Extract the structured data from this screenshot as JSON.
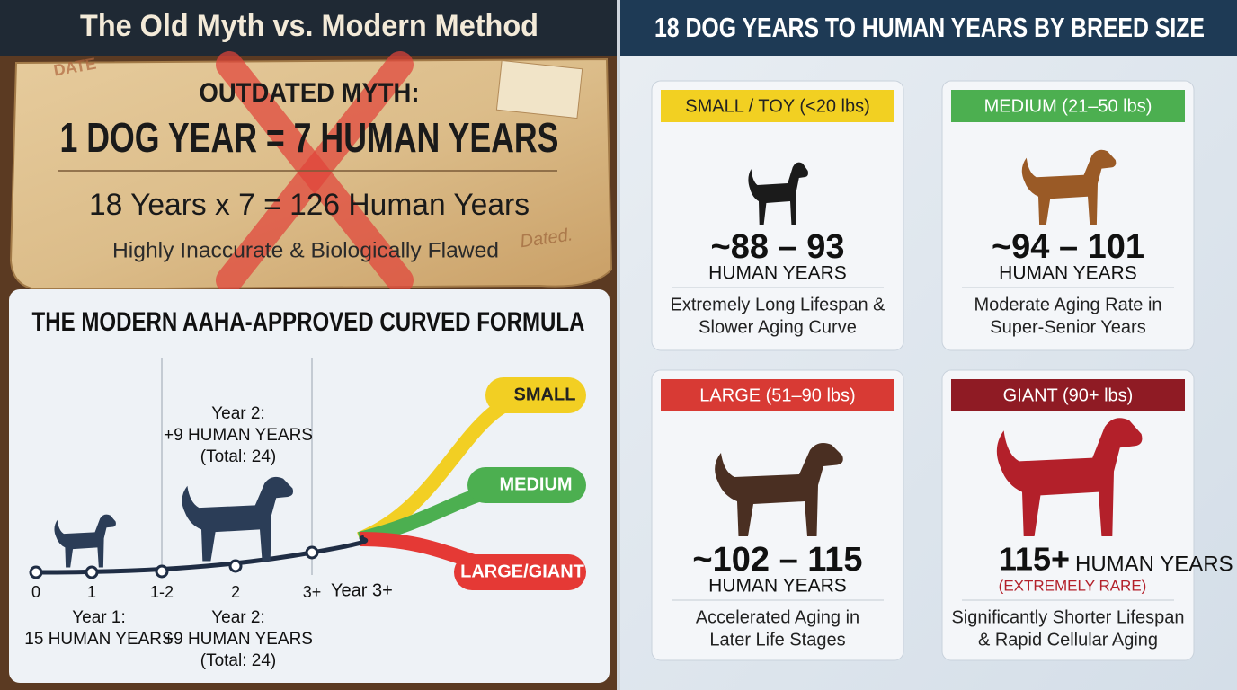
{
  "left_panel": {
    "title": "The Old Myth vs. Modern Method",
    "myth_card": {
      "stamp_top": "DATE",
      "heading": "OUTDATED MYTH:",
      "claim": "1 DOG YEAR = 7 HUMAN YEARS",
      "calculation": "18 Years  x 7 = 126 Human Years",
      "verdict": "Highly Inaccurate & Biologically Flawed",
      "stamp": "Dated."
    },
    "formula": {
      "title": "THE MODERN AAHA-APPROVED CURVED FORMULA",
      "timeline_ticks": [
        "0",
        "1",
        "1-2",
        "2",
        "3+"
      ],
      "timeline_end": "Year 3+",
      "upper_note": [
        "Year 2:",
        "+9 HUMAN YEARS",
        "(Total: 24)"
      ],
      "year1_note": [
        "Year 1:",
        "15 HUMAN YEARS"
      ],
      "year2_note": [
        "Year 2:",
        "+9 HUMAN YEARS",
        "(Total: 24)"
      ],
      "curves": [
        "SMALL",
        "MEDIUM",
        "LARGE/GIANT"
      ]
    }
  },
  "right_panel": {
    "title": "18 DOG YEARS TO HUMAN YEARS BY BREED SIZE",
    "cards": [
      {
        "label": "SMALL / TOY (<20 lbs)",
        "range": "~88 – 93",
        "unit": "HUMAN YEARS",
        "description": [
          "Extremely Long Lifespan &",
          "Slower Aging Curve"
        ]
      },
      {
        "label": "MEDIUM (21–50 lbs)",
        "range": "~94 – 101",
        "unit": "HUMAN YEARS",
        "description": [
          "Moderate Aging Rate in",
          "Super-Senior Years"
        ]
      },
      {
        "label": "LARGE (51–90 lbs)",
        "range": "~102 – 115",
        "unit": "HUMAN YEARS",
        "description": [
          "Accelerated Aging in",
          "Later Life Stages"
        ]
      },
      {
        "label": "GIANT (90+ lbs)",
        "range": "115+",
        "unit": "HUMAN YEARS",
        "note": "(EXTREMELY RARE)",
        "description": [
          "Significantly Shorter Lifespan",
          "& Rapid Cellular Aging"
        ]
      }
    ]
  }
}
